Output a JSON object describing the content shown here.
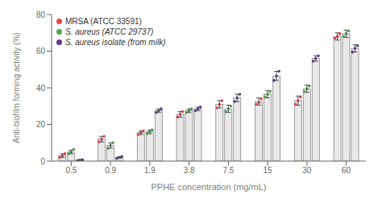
{
  "chart_data": {
    "type": "bar",
    "xlabel": "PPHE concentration (mg/mL)",
    "ylabel": "Anti-biofilm forming activity (%)",
    "categories": [
      "0.5",
      "0.9",
      "1.9",
      "3.8",
      "7.5",
      "15",
      "30",
      "60"
    ],
    "color": "#e8e8e8",
    "series": [
      {
        "name": "MRSA (ATCC 33591)",
        "color": "#e8434b",
        "values": [
          3.0,
          12.0,
          15.5,
          25.5,
          31.0,
          32.5,
          33.0,
          68.0
        ],
        "errors": [
          1.0,
          1.5,
          1.0,
          1.5,
          2.0,
          2.0,
          2.5,
          2.0
        ],
        "points": [
          [
            2.0,
            3.0,
            4.0
          ],
          [
            10.5,
            12.0,
            13.5
          ],
          [
            14.5,
            15.5,
            16.5
          ],
          [
            24.0,
            25.5,
            27.0
          ],
          [
            29.0,
            31.0,
            33.0
          ],
          [
            31.0,
            32.0,
            34.0
          ],
          [
            31.0,
            33.0,
            35.0
          ],
          [
            67.0,
            68.0,
            69.5
          ]
        ]
      },
      {
        "name": "S. aureus (ATCC 29737)",
        "color": "#52a355",
        "values": [
          5.0,
          8.5,
          16.0,
          27.5,
          28.5,
          36.5,
          39.5,
          69.5
        ],
        "errors": [
          1.0,
          1.5,
          1.0,
          1.0,
          2.0,
          2.0,
          2.0,
          2.0
        ],
        "points": [
          [
            4.0,
            5.0,
            6.5
          ],
          [
            7.0,
            8.5,
            10.0
          ],
          [
            15.0,
            16.0,
            17.0
          ],
          [
            26.5,
            27.5,
            28.5
          ],
          [
            27.0,
            28.5,
            30.0
          ],
          [
            35.0,
            36.5,
            38.0
          ],
          [
            38.0,
            39.5,
            41.0
          ],
          [
            68.0,
            69.5,
            71.0
          ]
        ]
      },
      {
        "name": "S. aureus isolate (from milk)",
        "color": "#5b3b8c",
        "values": [
          0.5,
          2.0,
          27.5,
          28.5,
          34.5,
          46.5,
          56.0,
          61.5
        ],
        "errors": [
          0.3,
          0.5,
          1.0,
          1.0,
          2.0,
          2.5,
          1.5,
          2.0
        ],
        "points": [
          [
            0.3,
            0.5,
            0.8
          ],
          [
            1.5,
            2.0,
            2.5
          ],
          [
            26.5,
            27.5,
            28.5
          ],
          [
            27.5,
            28.5,
            29.5
          ],
          [
            32.5,
            34.5,
            36.5
          ],
          [
            44.0,
            46.5,
            49.0
          ],
          [
            54.5,
            56.0,
            57.5
          ],
          [
            59.5,
            61.5,
            63.0
          ]
        ]
      }
    ],
    "ylim": [
      0,
      80
    ],
    "yticks": [
      0,
      20,
      40,
      60,
      80
    ],
    "legend": "upper left"
  }
}
